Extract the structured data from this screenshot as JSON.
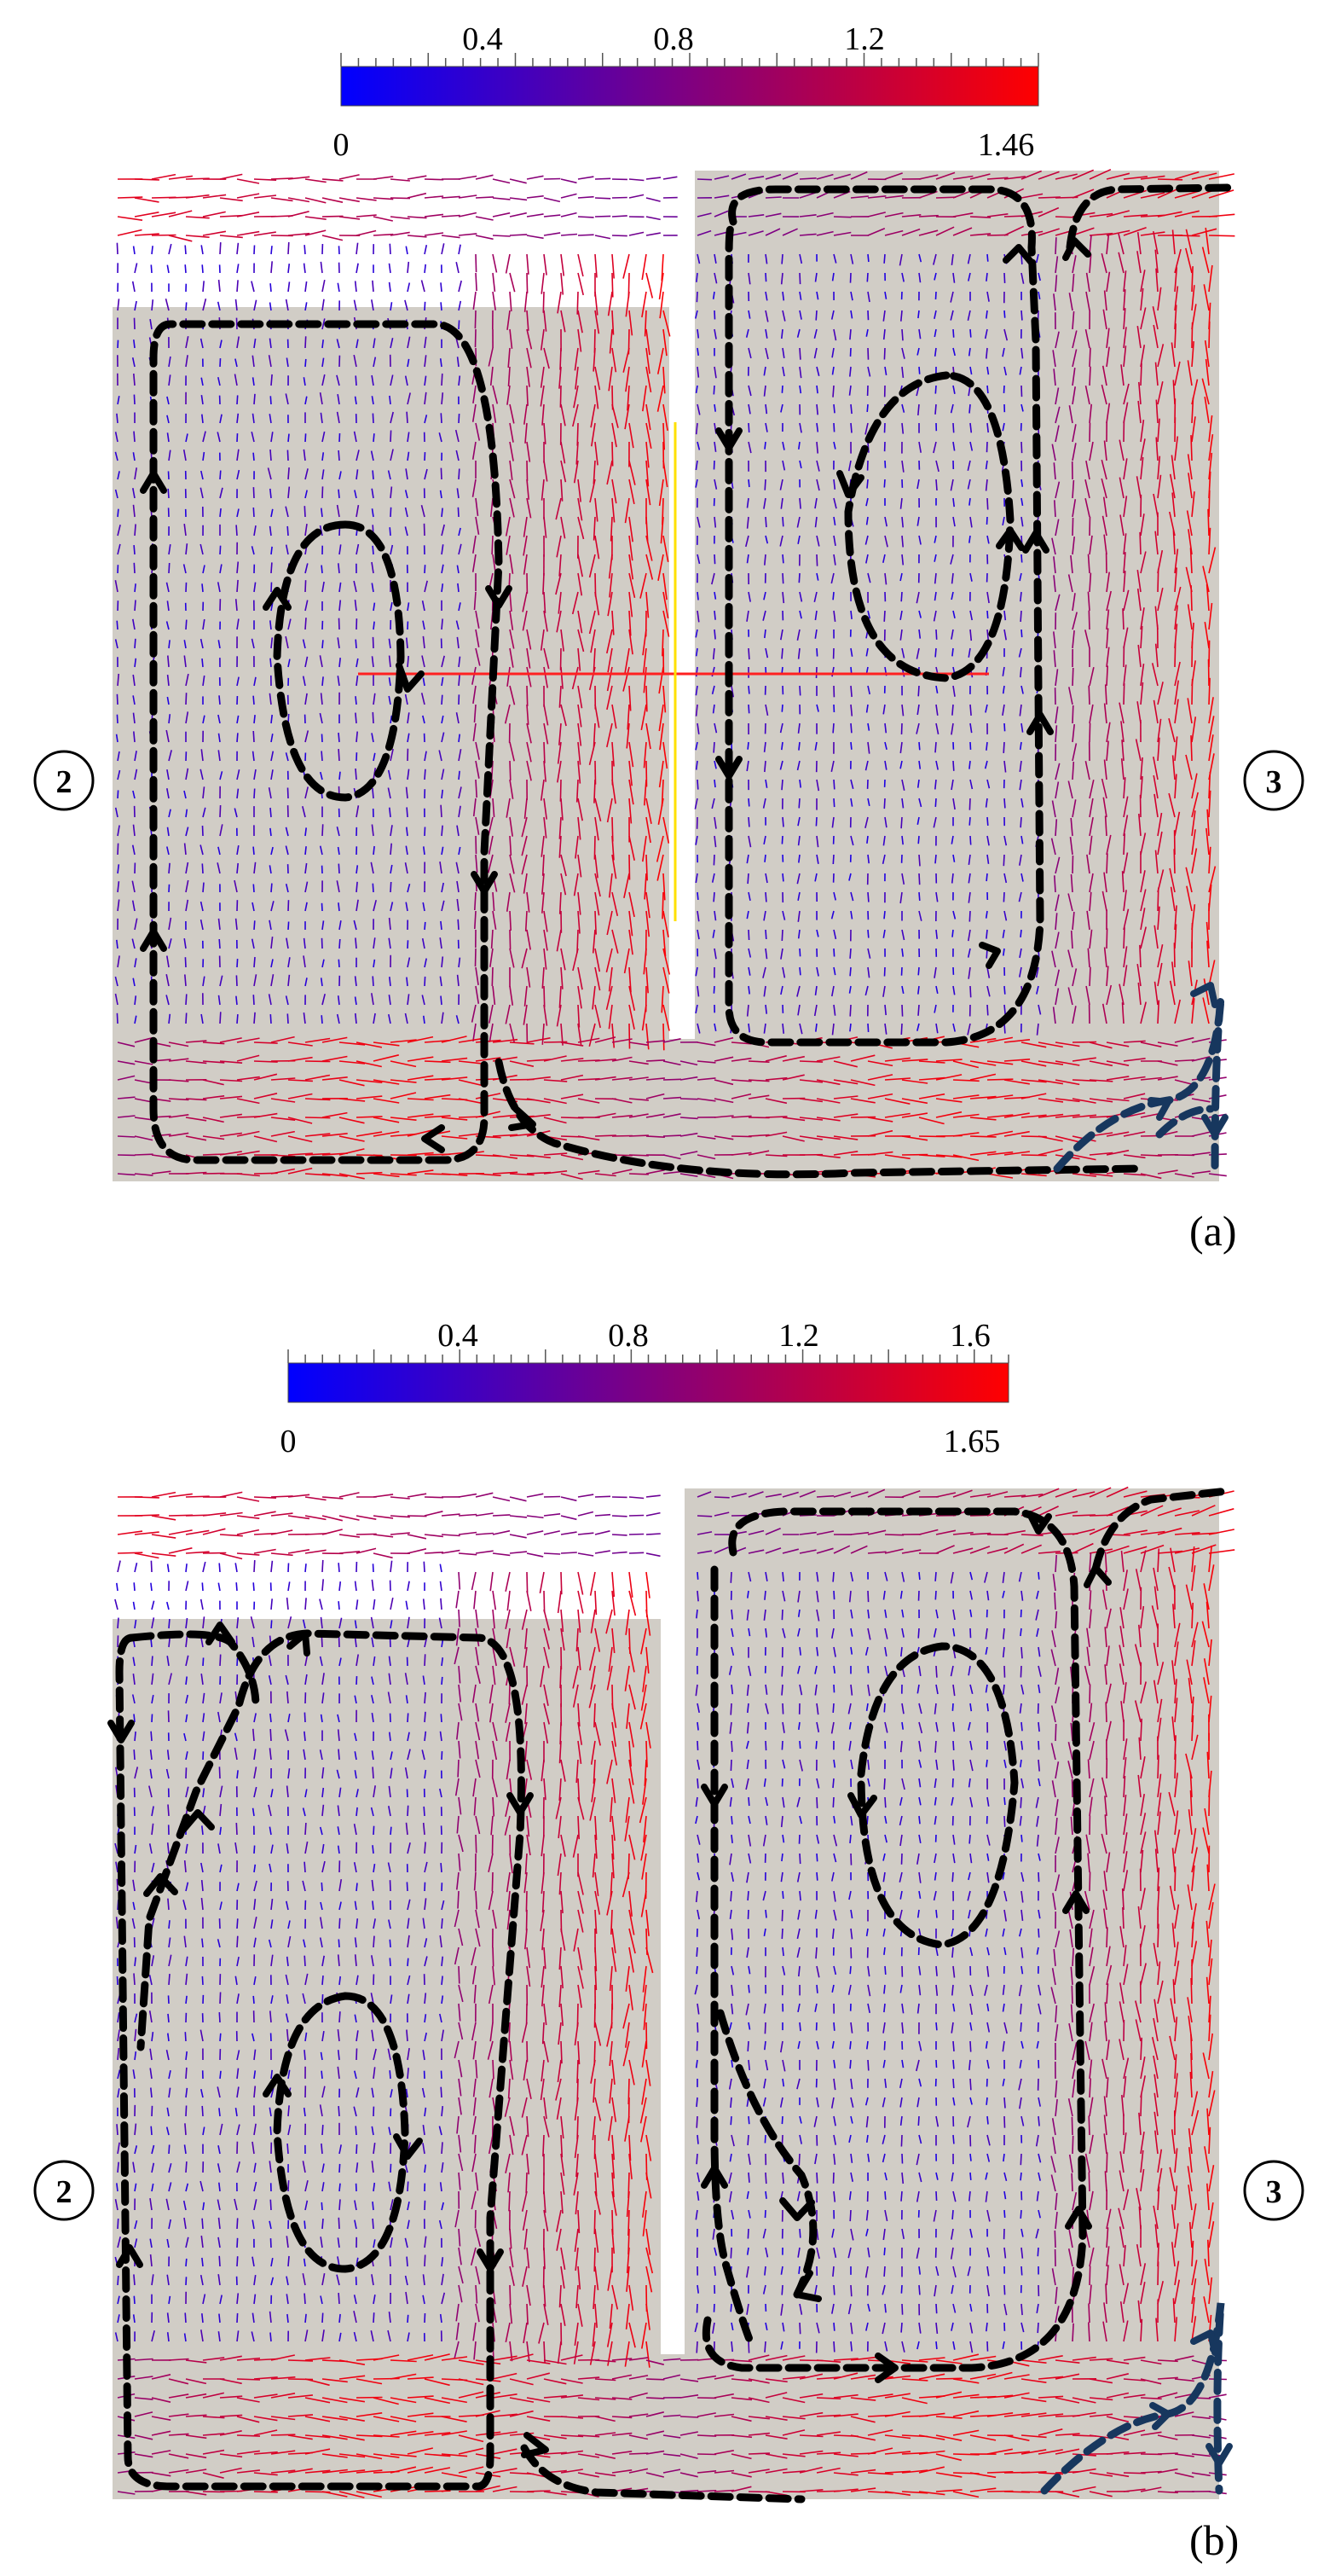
{
  "panels": [
    {
      "id": "a",
      "label": "(a)",
      "colorbar": {
        "min_label": "0",
        "max_label": "1.46",
        "tick_labels": [
          "0.4",
          "0.8",
          "1.2"
        ],
        "min": 0,
        "max": 1.46,
        "colors": [
          "#0000ff",
          "#800080",
          "#ff0000"
        ]
      },
      "markers": {
        "left": "2",
        "right": "3"
      }
    },
    {
      "id": "b",
      "label": "(b)",
      "colorbar": {
        "min_label": "0",
        "max_label": "1.65",
        "tick_labels": [
          "0.4",
          "0.8",
          "1.2",
          "1.6"
        ],
        "min": 0,
        "max": 1.65,
        "colors": [
          "#0000ff",
          "#800080",
          "#ff0000"
        ]
      },
      "markers": {
        "left": "2",
        "right": "3"
      }
    }
  ],
  "colors": {
    "domain_fill": "#d1cdc6",
    "streamline": "#000000",
    "streamline_secondary": "#17375e"
  }
}
